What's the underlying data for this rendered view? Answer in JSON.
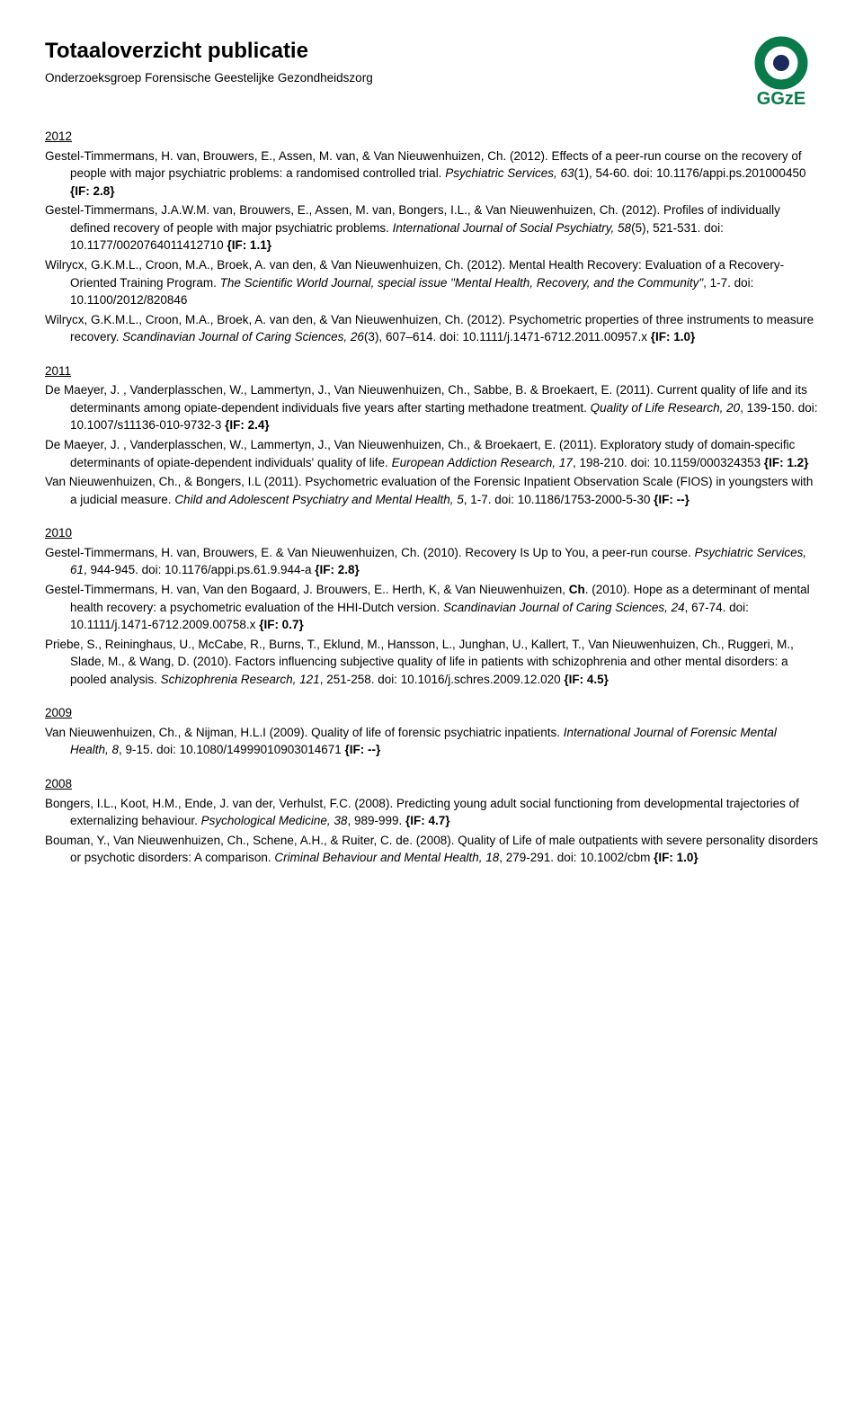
{
  "header": {
    "title": "Totaaloverzicht publicatie",
    "subtitle": "Onderzoeksgroep Forensische Geestelijke Gezondheidszorg",
    "logo": {
      "brand_text": "GGzE",
      "ring_color": "#0b7a4a",
      "dot_color": "#1a2a5c",
      "text_color": "#0b7a4a"
    }
  },
  "sections": [
    {
      "year": "2012",
      "entries": [
        {
          "segments": [
            {
              "t": "Gestel-Timmermans, H. van, Brouwers, E., Assen, M. van, & Van Nieuwenhuizen, Ch. (2012). Effects of a peer-run course on the recovery of people with major psychiatric problems: a randomised controlled trial. "
            },
            {
              "t": "Psychiatric Services, 63",
              "i": true
            },
            {
              "t": "(1), 54-60. doi: 10.1176/appi.ps.201000450 "
            },
            {
              "t": "{IF: 2.8}",
              "b": true
            }
          ]
        },
        {
          "segments": [
            {
              "t": "Gestel-Timmermans, J.A.W.M. van, Brouwers, E., Assen, M. van, Bongers, I.L., & Van Nieuwenhuizen, Ch. (2012). Profiles of individually defined recovery of people with major psychiatric problems. "
            },
            {
              "t": "International Journal of Social Psychiatry, 58",
              "i": true
            },
            {
              "t": "(5), 521-531. doi: 10.1177/0020764011412710 "
            },
            {
              "t": "{IF: 1.1}",
              "b": true
            }
          ]
        },
        {
          "segments": [
            {
              "t": "Wilrycx, G.K.M.L., Croon, M.A., Broek, A. van den, & Van Nieuwenhuizen, Ch. (2012). Mental Health Recovery: Evaluation of a Recovery-Oriented Training Program. "
            },
            {
              "t": "The Scientific World Journal, special issue \"Mental Health, Recovery, and the Community\"",
              "i": true
            },
            {
              "t": ", 1-7. doi: 10.1100/2012/820846"
            }
          ]
        },
        {
          "segments": [
            {
              "t": "Wilrycx, G.K.M.L., Croon, M.A., Broek, A. van den, & Van Nieuwenhuizen, Ch. (2012). Psychometric properties of three instruments to measure recovery. "
            },
            {
              "t": "Scandinavian Journal of Caring Sciences, 26",
              "i": true
            },
            {
              "t": "(3), 607–614. doi: 10.1111/j.1471-6712.2011.00957.x "
            },
            {
              "t": "{IF: 1.0}",
              "b": true
            }
          ]
        }
      ]
    },
    {
      "year": "2011",
      "entries": [
        {
          "segments": [
            {
              "t": "De Maeyer, J. , Vanderplasschen, W., Lammertyn, J., Van Nieuwenhuizen, Ch., Sabbe, B. & Broekaert, E. (2011). Current quality of life and its determinants among opiate-dependent individuals five years after starting methadone treatment. "
            },
            {
              "t": "Quality of Life Research, 20",
              "i": true
            },
            {
              "t": ", 139-150. doi: 10.1007/s11136-010-9732-3 "
            },
            {
              "t": "{IF: 2.4}",
              "b": true
            }
          ]
        },
        {
          "segments": [
            {
              "t": "De Maeyer, J. , Vanderplasschen, W., Lammertyn, J., Van Nieuwenhuizen, Ch., & Broekaert, E. (2011). Exploratory study of domain-specific determinants of opiate-dependent individuals' quality of life. "
            },
            {
              "t": "European Addiction Research, 17",
              "i": true
            },
            {
              "t": ", 198-210. doi: 10.1159/000324353 "
            },
            {
              "t": "{IF: 1.2}",
              "b": true
            }
          ]
        },
        {
          "segments": [
            {
              "t": "Van Nieuwenhuizen, Ch., & Bongers, I.L (2011). Psychometric evaluation of the Forensic Inpatient Observation Scale (FIOS) in youngsters with a judicial measure. "
            },
            {
              "t": "Child and Adolescent Psychiatry and Mental Health, 5",
              "i": true
            },
            {
              "t": ", 1-7. doi: 10.1186/1753-2000-5-30 "
            },
            {
              "t": "{IF: --}",
              "b": true
            }
          ]
        }
      ]
    },
    {
      "year": "2010",
      "entries": [
        {
          "segments": [
            {
              "t": "Gestel-Timmermans, H. van, Brouwers, E. & Van Nieuwenhuizen, Ch. (2010). Recovery Is Up to You, a peer-run course. "
            },
            {
              "t": "Psychiatric Services, 61",
              "i": true
            },
            {
              "t": ", 944-945. doi: 10.1176/appi.ps.61.9.944-a "
            },
            {
              "t": "{IF: 2.8}",
              "b": true
            }
          ]
        },
        {
          "segments": [
            {
              "t": "Gestel-Timmermans, H. van, Van den Bogaard, J. Brouwers, E.. Herth, K, & Van Nieuwenhuizen, "
            },
            {
              "t": "Ch",
              "b": true
            },
            {
              "t": ". (2010). Hope as a determinant of mental health recovery: a psychometric evaluation of the HHI-Dutch version. "
            },
            {
              "t": "Scandinavian Journal of Caring Sciences, 24",
              "i": true
            },
            {
              "t": ", 67-74. doi: 10.1111/j.1471-6712.2009.00758.x "
            },
            {
              "t": "{IF: 0.7}",
              "b": true
            }
          ]
        },
        {
          "segments": [
            {
              "t": "Priebe, S., Reininghaus, U., McCabe, R., Burns, T., Eklund, M., Hansson, L., Junghan, U., Kallert, T., Van Nieuwenhuizen, Ch., Ruggeri, M., Slade, M., & Wang, D. (2010). Factors influencing subjective quality of life in patients with schizophrenia and other mental disorders: a pooled analysis. "
            },
            {
              "t": "Schizophrenia Research, 121",
              "i": true
            },
            {
              "t": ", 251-258. doi: 10.1016/j.schres.2009.12.020 "
            },
            {
              "t": "{IF: 4.5}",
              "b": true
            }
          ]
        }
      ]
    },
    {
      "year": "2009",
      "entries": [
        {
          "segments": [
            {
              "t": "Van Nieuwenhuizen, Ch., & Nijman, H.L.I (2009). Quality of life of forensic psychiatric inpatients. "
            },
            {
              "t": "International Journal of Forensic Mental Health, 8",
              "i": true
            },
            {
              "t": ", 9-15. doi: 10.1080/14999010903014671 "
            },
            {
              "t": "{IF: --}",
              "b": true
            }
          ]
        }
      ]
    },
    {
      "year": "2008",
      "entries": [
        {
          "segments": [
            {
              "t": "Bongers, I.L., Koot, H.M., Ende, J. van der, Verhulst, F.C. (2008). Predicting young adult social functioning from developmental trajectories of externalizing behaviour. "
            },
            {
              "t": "Psychological Medicine, 38",
              "i": true
            },
            {
              "t": ", 989-999. "
            },
            {
              "t": "{IF: 4.7}",
              "b": true
            }
          ]
        },
        {
          "segments": [
            {
              "t": "Bouman, Y., Van Nieuwenhuizen, Ch., Schene, A.H., & Ruiter, C. de. (2008). Quality of Life of male outpatients with severe personality disorders or psychotic disorders: A comparison. "
            },
            {
              "t": "Criminal Behaviour and Mental Health, 18",
              "i": true
            },
            {
              "t": ", 279-291. doi: 10.1002/cbm "
            },
            {
              "t": "{IF: 1.0}",
              "b": true
            }
          ]
        }
      ]
    }
  ]
}
